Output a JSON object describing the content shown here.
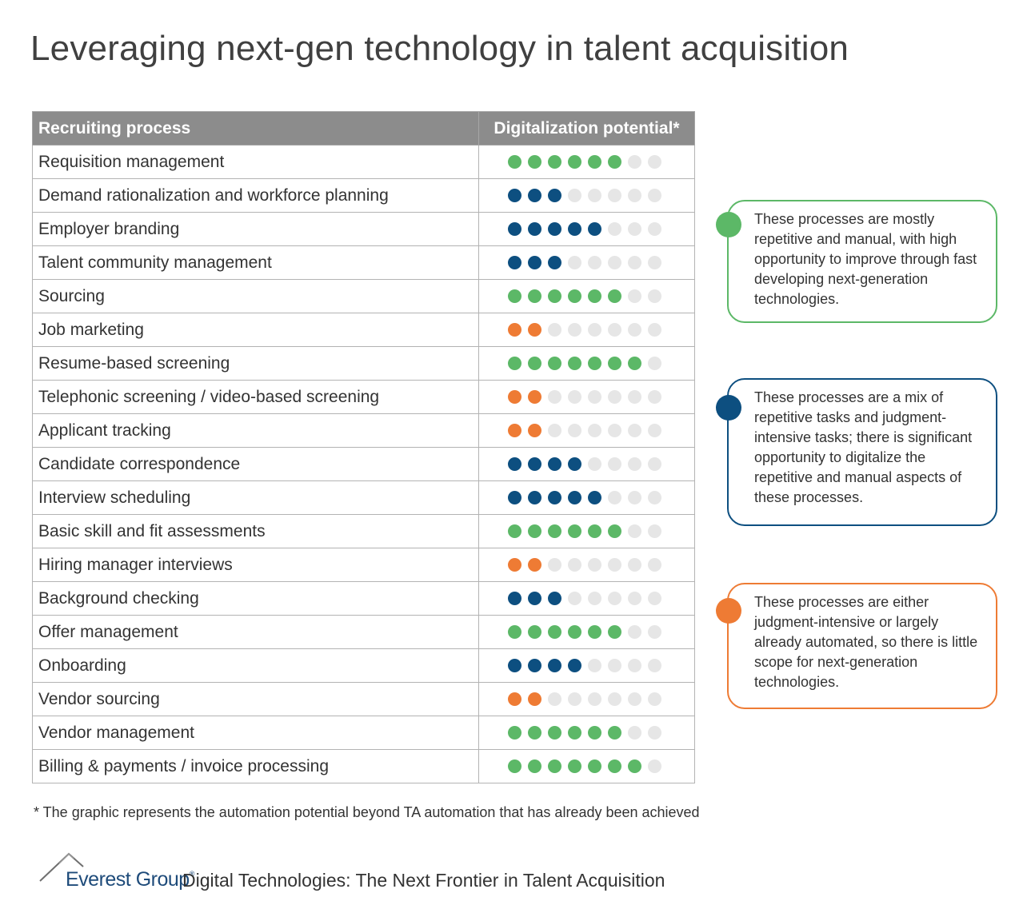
{
  "title": "Leveraging next-gen technology in talent acquisition",
  "table": {
    "col_process": "Recruiting process",
    "col_potential": "Digitalization potential*",
    "max_dots": 8,
    "rows": [
      {
        "process": "Requisition management",
        "level": 6,
        "category": "high"
      },
      {
        "process": "Demand rationalization and workforce planning",
        "level": 3,
        "category": "medium"
      },
      {
        "process": "Employer branding",
        "level": 5,
        "category": "medium"
      },
      {
        "process": "Talent community management",
        "level": 3,
        "category": "medium"
      },
      {
        "process": "Sourcing",
        "level": 6,
        "category": "high"
      },
      {
        "process": "Job marketing",
        "level": 2,
        "category": "low"
      },
      {
        "process": "Resume-based screening",
        "level": 7,
        "category": "high"
      },
      {
        "process": "Telephonic screening / video-based screening",
        "level": 2,
        "category": "low"
      },
      {
        "process": "Applicant tracking",
        "level": 2,
        "category": "low"
      },
      {
        "process": "Candidate correspondence",
        "level": 4,
        "category": "medium"
      },
      {
        "process": "Interview scheduling",
        "level": 5,
        "category": "medium"
      },
      {
        "process": "Basic skill and fit assessments",
        "level": 6,
        "category": "high"
      },
      {
        "process": "Hiring manager interviews",
        "level": 2,
        "category": "low"
      },
      {
        "process": "Background checking",
        "level": 3,
        "category": "medium"
      },
      {
        "process": "Offer management",
        "level": 6,
        "category": "high"
      },
      {
        "process": "Onboarding",
        "level": 4,
        "category": "medium"
      },
      {
        "process": "Vendor sourcing",
        "level": 2,
        "category": "low"
      },
      {
        "process": "Vendor management",
        "level": 6,
        "category": "high"
      },
      {
        "process": "Billing & payments / invoice processing",
        "level": 7,
        "category": "high"
      }
    ]
  },
  "colors": {
    "high": "#5cb867",
    "medium": "#0d4f80",
    "low": "#ee7b34",
    "empty": "#e6e6e6"
  },
  "legend": [
    {
      "category": "high",
      "text": "These processes are mostly repetitive and manual, with high opportunity to improve through fast developing next-generation technologies."
    },
    {
      "category": "medium",
      "text": "These processes are a mix of repetitive tasks and judgment-intensive tasks; there is significant opportunity to digitalize the repetitive and manual aspects of these processes."
    },
    {
      "category": "low",
      "text": "These processes are either judgment-intensive or largely already automated, so there is little scope for next-generation technologies."
    }
  ],
  "footnote": "*  The graphic represents the automation potential beyond TA automation that has already been achieved",
  "footer": {
    "brand": "Everest Group",
    "brand_mark": "®",
    "report_title": "Digital Technologies: The Next Frontier in Talent Acquisition"
  }
}
